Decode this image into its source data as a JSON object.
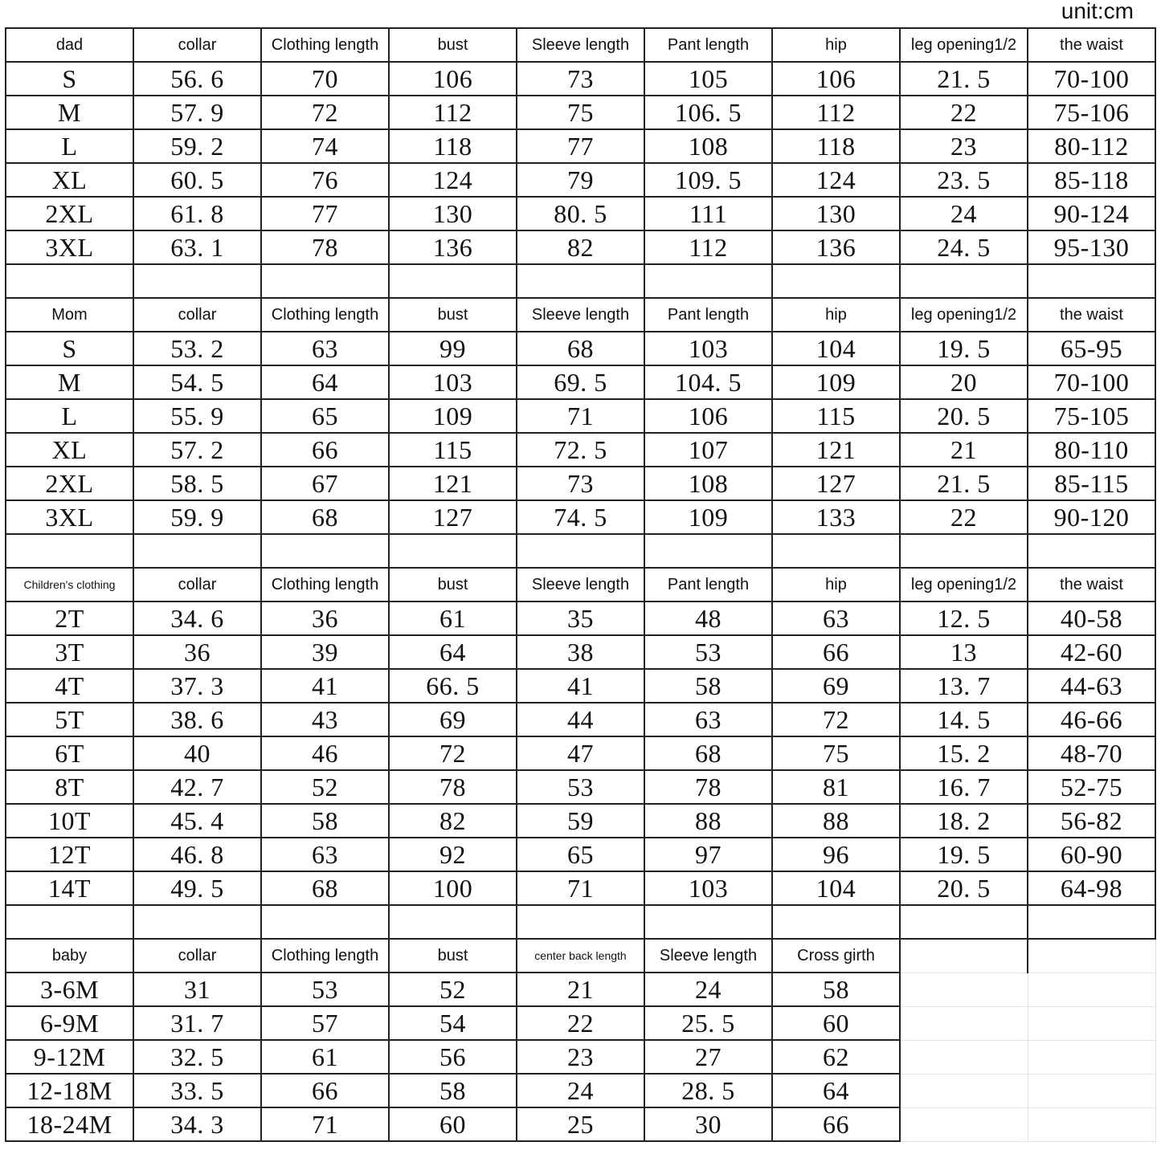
{
  "unit_label": "unit:cm",
  "sections": [
    {
      "headers": [
        "dad",
        "collar",
        "Clothing length",
        "bust",
        "Sleeve length",
        "Pant length",
        "hip",
        "leg opening1/2",
        "the waist"
      ],
      "rows": [
        [
          "S",
          "56. 6",
          "70",
          "106",
          "73",
          "105",
          "106",
          "21. 5",
          "70-100"
        ],
        [
          "M",
          "57. 9",
          "72",
          "112",
          "75",
          "106. 5",
          "112",
          "22",
          "75-106"
        ],
        [
          "L",
          "59. 2",
          "74",
          "118",
          "77",
          "108",
          "118",
          "23",
          "80-112"
        ],
        [
          "XL",
          "60. 5",
          "76",
          "124",
          "79",
          "109. 5",
          "124",
          "23. 5",
          "85-118"
        ],
        [
          "2XL",
          "61. 8",
          "77",
          "130",
          "80. 5",
          "111",
          "130",
          "24",
          "90-124"
        ],
        [
          "3XL",
          "63. 1",
          "78",
          "136",
          "82",
          "112",
          "136",
          "24. 5",
          "95-130"
        ]
      ]
    },
    {
      "headers": [
        "Mom",
        "collar",
        "Clothing length",
        "bust",
        "Sleeve length",
        "Pant length",
        "hip",
        "leg opening1/2",
        "the waist"
      ],
      "rows": [
        [
          "S",
          "53. 2",
          "63",
          "99",
          "68",
          "103",
          "104",
          "19. 5",
          "65-95"
        ],
        [
          "M",
          "54. 5",
          "64",
          "103",
          "69. 5",
          "104. 5",
          "109",
          "20",
          "70-100"
        ],
        [
          "L",
          "55. 9",
          "65",
          "109",
          "71",
          "106",
          "115",
          "20. 5",
          "75-105"
        ],
        [
          "XL",
          "57. 2",
          "66",
          "115",
          "72. 5",
          "107",
          "121",
          "21",
          "80-110"
        ],
        [
          "2XL",
          "58. 5",
          "67",
          "121",
          "73",
          "108",
          "127",
          "21. 5",
          "85-115"
        ],
        [
          "3XL",
          "59. 9",
          "68",
          "127",
          "74. 5",
          "109",
          "133",
          "22",
          "90-120"
        ]
      ]
    },
    {
      "headers": [
        "Children's clothing",
        "collar",
        "Clothing length",
        "bust",
        "Sleeve length",
        "Pant length",
        "hip",
        "leg opening1/2",
        "the waist"
      ],
      "rows": [
        [
          "2T",
          "34. 6",
          "36",
          "61",
          "35",
          "48",
          "63",
          "12. 5",
          "40-58"
        ],
        [
          "3T",
          "36",
          "39",
          "64",
          "38",
          "53",
          "66",
          "13",
          "42-60"
        ],
        [
          "4T",
          "37. 3",
          "41",
          "66. 5",
          "41",
          "58",
          "69",
          "13. 7",
          "44-63"
        ],
        [
          "5T",
          "38. 6",
          "43",
          "69",
          "44",
          "63",
          "72",
          "14. 5",
          "46-66"
        ],
        [
          "6T",
          "40",
          "46",
          "72",
          "47",
          "68",
          "75",
          "15. 2",
          "48-70"
        ],
        [
          "8T",
          "42. 7",
          "52",
          "78",
          "53",
          "78",
          "81",
          "16. 7",
          "52-75"
        ],
        [
          "10T",
          "45. 4",
          "58",
          "82",
          "59",
          "88",
          "88",
          "18. 2",
          "56-82"
        ],
        [
          "12T",
          "46. 8",
          "63",
          "92",
          "65",
          "97",
          "96",
          "19. 5",
          "60-90"
        ],
        [
          "14T",
          "49. 5",
          "68",
          "100",
          "71",
          "103",
          "104",
          "20. 5",
          "64-98"
        ]
      ]
    },
    {
      "headers": [
        "baby",
        "collar",
        "Clothing length",
        "bust",
        "center back length",
        "Sleeve length",
        "Cross girth"
      ],
      "rows": [
        [
          "3-6M",
          "31",
          "53",
          "52",
          "21",
          "24",
          "58"
        ],
        [
          "6-9M",
          "31. 7",
          "57",
          "54",
          "22",
          "25. 5",
          "60"
        ],
        [
          "9-12M",
          "32. 5",
          "61",
          "56",
          "23",
          "27",
          "62"
        ],
        [
          "12-18M",
          "33. 5",
          "66",
          "58",
          "24",
          "28. 5",
          "64"
        ],
        [
          "18-24M",
          "34. 3",
          "71",
          "60",
          "25",
          "30",
          "66"
        ]
      ]
    }
  ]
}
